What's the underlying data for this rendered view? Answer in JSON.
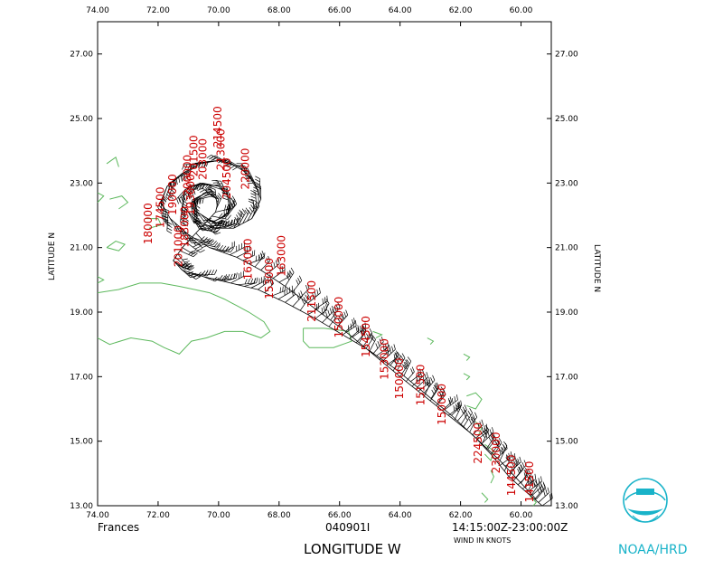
{
  "chart_data": {
    "type": "scatter",
    "subtype": "flight-level wind barbs along aircraft track (map)",
    "xlabel": "LONGITUDE   W",
    "ylabel": "LATITUDE   N",
    "xlim": [
      74.0,
      59.0
    ],
    "ylim": [
      13.0,
      28.0
    ],
    "x_ticks": [
      "74.00",
      "72.00",
      "70.00",
      "68.00",
      "66.00",
      "64.00",
      "62.00",
      "60.00"
    ],
    "y_ticks": [
      "13.00",
      "15.00",
      "17.00",
      "19.00",
      "21.00",
      "23.00",
      "25.00",
      "27.00"
    ],
    "footer": {
      "storm": "Frances",
      "flight_id": "040901I",
      "time_range": "14:15:00Z-23:00:00Z",
      "units_note": "WIND IN KNOTS"
    },
    "logo_text": "NOAA/HRD",
    "colors": {
      "axes": "#000000",
      "coast": "#5cb85c",
      "time_labels": "#cc0000",
      "logo": "#19b3c9"
    },
    "track": [
      [
        59.3,
        13.0
      ],
      [
        59.8,
        13.4
      ],
      [
        60.4,
        13.9
      ],
      [
        61.0,
        14.6
      ],
      [
        61.6,
        15.2
      ],
      [
        62.4,
        15.8
      ],
      [
        63.2,
        16.4
      ],
      [
        64.0,
        17.0
      ],
      [
        64.9,
        17.7
      ],
      [
        65.8,
        18.4
      ],
      [
        66.8,
        19.1
      ],
      [
        67.8,
        19.8
      ],
      [
        68.6,
        20.3
      ],
      [
        69.4,
        20.7
      ],
      [
        70.3,
        21.0
      ],
      [
        71.0,
        21.4
      ],
      [
        71.6,
        21.9
      ],
      [
        71.9,
        22.4
      ],
      [
        71.7,
        22.9
      ],
      [
        71.2,
        23.3
      ],
      [
        70.6,
        23.6
      ],
      [
        70.0,
        23.7
      ],
      [
        69.3,
        23.5
      ],
      [
        68.8,
        23.0
      ],
      [
        68.6,
        22.5
      ],
      [
        68.9,
        21.9
      ],
      [
        69.5,
        21.6
      ],
      [
        70.2,
        21.6
      ],
      [
        70.8,
        21.9
      ],
      [
        71.2,
        22.3
      ],
      [
        71.1,
        22.8
      ],
      [
        70.6,
        23.0
      ],
      [
        70.0,
        22.9
      ],
      [
        69.6,
        22.5
      ],
      [
        69.7,
        22.0
      ],
      [
        70.2,
        21.8
      ],
      [
        70.7,
        22.1
      ],
      [
        70.8,
        22.5
      ],
      [
        70.4,
        22.7
      ],
      [
        70.0,
        22.5
      ],
      [
        70.1,
        22.1
      ],
      [
        70.6,
        21.6
      ],
      [
        71.2,
        21.0
      ],
      [
        71.5,
        20.6
      ],
      [
        71.2,
        20.3
      ],
      [
        70.5,
        20.1
      ],
      [
        69.6,
        19.9
      ],
      [
        68.7,
        19.7
      ],
      [
        67.8,
        19.3
      ],
      [
        66.8,
        18.8
      ],
      [
        65.9,
        18.3
      ],
      [
        65.0,
        17.8
      ],
      [
        64.1,
        17.2
      ],
      [
        63.2,
        16.5
      ],
      [
        62.3,
        15.8
      ],
      [
        61.5,
        15.1
      ],
      [
        60.7,
        14.4
      ],
      [
        60.0,
        13.7
      ],
      [
        59.5,
        13.2
      ]
    ],
    "time_labels": [
      {
        "text": "174500",
        "lon": 71.8,
        "lat": 21.6
      },
      {
        "text": "180000",
        "lon": 72.2,
        "lat": 21.1
      },
      {
        "text": "183000",
        "lon": 71.0,
        "lat": 21.0
      },
      {
        "text": "190000",
        "lon": 71.4,
        "lat": 22.0
      },
      {
        "text": "193000",
        "lon": 70.8,
        "lat": 22.0
      },
      {
        "text": "200000",
        "lon": 70.9,
        "lat": 22.6
      },
      {
        "text": "201500",
        "lon": 70.7,
        "lat": 23.2
      },
      {
        "text": "203000",
        "lon": 70.4,
        "lat": 23.1
      },
      {
        "text": "204500",
        "lon": 69.6,
        "lat": 22.5
      },
      {
        "text": "201000",
        "lon": 71.2,
        "lat": 20.4
      },
      {
        "text": "213000",
        "lon": 69.8,
        "lat": 23.4
      },
      {
        "text": "214500",
        "lon": 69.9,
        "lat": 24.1
      },
      {
        "text": "220000",
        "lon": 69.0,
        "lat": 22.8
      },
      {
        "text": "163000",
        "lon": 68.9,
        "lat": 20.0
      },
      {
        "text": "163000",
        "lon": 67.8,
        "lat": 20.1
      },
      {
        "text": "153000",
        "lon": 68.2,
        "lat": 19.4
      },
      {
        "text": "211500",
        "lon": 66.8,
        "lat": 18.7
      },
      {
        "text": "150000",
        "lon": 65.9,
        "lat": 18.2
      },
      {
        "text": "154500",
        "lon": 65.0,
        "lat": 17.6
      },
      {
        "text": "153000",
        "lon": 64.4,
        "lat": 16.9
      },
      {
        "text": "150000",
        "lon": 63.9,
        "lat": 16.3
      },
      {
        "text": "151500",
        "lon": 63.2,
        "lat": 16.1
      },
      {
        "text": "150000",
        "lon": 62.5,
        "lat": 15.5
      },
      {
        "text": "224500",
        "lon": 61.3,
        "lat": 14.3
      },
      {
        "text": "230000",
        "lon": 60.7,
        "lat": 14.0
      },
      {
        "text": "144500",
        "lon": 60.2,
        "lat": 13.3
      },
      {
        "text": "141500",
        "lon": 59.6,
        "lat": 13.1
      }
    ],
    "coastlines": [
      {
        "name": "Hispaniola",
        "pts": [
          [
            74.0,
            19.6
          ],
          [
            73.3,
            19.7
          ],
          [
            72.6,
            19.9
          ],
          [
            71.9,
            19.9
          ],
          [
            71.3,
            19.8
          ],
          [
            70.8,
            19.7
          ],
          [
            70.3,
            19.6
          ],
          [
            69.8,
            19.4
          ],
          [
            69.4,
            19.2
          ],
          [
            69.0,
            19.0
          ],
          [
            68.5,
            18.7
          ],
          [
            68.3,
            18.4
          ],
          [
            68.6,
            18.2
          ],
          [
            69.2,
            18.4
          ],
          [
            69.8,
            18.4
          ],
          [
            70.4,
            18.2
          ],
          [
            70.9,
            18.1
          ],
          [
            71.3,
            17.7
          ],
          [
            71.8,
            17.9
          ],
          [
            72.2,
            18.1
          ],
          [
            72.9,
            18.2
          ],
          [
            73.6,
            18.0
          ],
          [
            74.0,
            18.2
          ]
        ]
      },
      {
        "name": "Cuba-east",
        "pts": [
          [
            74.0,
            20.1
          ],
          [
            73.8,
            20.0
          ],
          [
            74.0,
            19.9
          ]
        ]
      },
      {
        "name": "Great Inagua",
        "pts": [
          [
            73.7,
            21.0
          ],
          [
            73.4,
            21.2
          ],
          [
            73.1,
            21.1
          ],
          [
            73.3,
            20.9
          ],
          [
            73.7,
            21.0
          ]
        ]
      },
      {
        "name": "Turks-Caicos",
        "pts": [
          [
            72.4,
            21.9
          ],
          [
            72.0,
            21.9
          ],
          [
            71.9,
            21.7
          ],
          [
            72.3,
            21.6
          ]
        ]
      },
      {
        "name": "Bahamas-SE",
        "pts": [
          [
            73.6,
            22.5
          ],
          [
            73.2,
            22.6
          ],
          [
            73.0,
            22.4
          ],
          [
            73.3,
            22.2
          ]
        ]
      },
      {
        "name": "Acklins",
        "pts": [
          [
            74.0,
            22.4
          ],
          [
            73.8,
            22.6
          ],
          [
            74.0,
            22.7
          ]
        ]
      },
      {
        "name": "Bahamas-N",
        "pts": [
          [
            73.7,
            23.6
          ],
          [
            73.4,
            23.8
          ],
          [
            73.3,
            23.5
          ]
        ]
      },
      {
        "name": "Puerto Rico",
        "pts": [
          [
            67.2,
            18.5
          ],
          [
            66.5,
            18.5
          ],
          [
            65.7,
            18.4
          ],
          [
            65.6,
            18.1
          ],
          [
            66.2,
            17.9
          ],
          [
            67.0,
            17.9
          ],
          [
            67.2,
            18.1
          ],
          [
            67.2,
            18.5
          ]
        ]
      },
      {
        "name": "Virgin Is.",
        "pts": [
          [
            64.9,
            18.4
          ],
          [
            64.6,
            18.3
          ],
          [
            64.8,
            18.2
          ]
        ]
      },
      {
        "name": "Anguilla-StMartin",
        "pts": [
          [
            63.1,
            18.2
          ],
          [
            62.9,
            18.1
          ],
          [
            63.0,
            18.0
          ]
        ]
      },
      {
        "name": "Barbuda",
        "pts": [
          [
            61.9,
            17.7
          ],
          [
            61.7,
            17.6
          ],
          [
            61.8,
            17.5
          ]
        ]
      },
      {
        "name": "Antigua",
        "pts": [
          [
            61.9,
            17.1
          ],
          [
            61.7,
            17.0
          ],
          [
            61.8,
            16.9
          ]
        ]
      },
      {
        "name": "Guadeloupe",
        "pts": [
          [
            61.8,
            16.4
          ],
          [
            61.5,
            16.5
          ],
          [
            61.3,
            16.3
          ],
          [
            61.5,
            16.0
          ],
          [
            61.8,
            16.1
          ]
        ]
      },
      {
        "name": "Dominica",
        "pts": [
          [
            61.5,
            15.6
          ],
          [
            61.3,
            15.4
          ],
          [
            61.4,
            15.2
          ]
        ]
      },
      {
        "name": "Martinique",
        "pts": [
          [
            61.2,
            14.9
          ],
          [
            60.9,
            14.7
          ],
          [
            61.0,
            14.4
          ],
          [
            61.2,
            14.6
          ]
        ]
      },
      {
        "name": "St Lucia",
        "pts": [
          [
            61.0,
            14.1
          ],
          [
            60.9,
            13.9
          ],
          [
            61.0,
            13.7
          ]
        ]
      },
      {
        "name": "Barbados",
        "pts": [
          [
            59.7,
            13.3
          ],
          [
            59.5,
            13.1
          ],
          [
            59.6,
            13.0
          ]
        ]
      },
      {
        "name": "St Vincent",
        "pts": [
          [
            61.3,
            13.4
          ],
          [
            61.1,
            13.2
          ],
          [
            61.2,
            13.1
          ]
        ]
      }
    ]
  }
}
